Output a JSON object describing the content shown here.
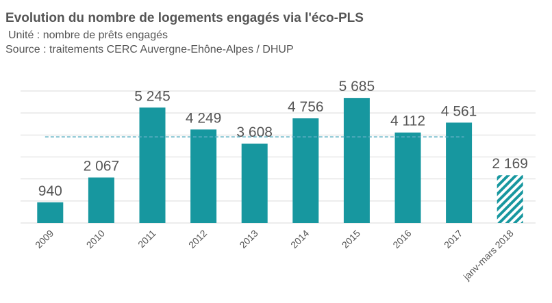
{
  "chart_data": {
    "type": "bar",
    "title": "Evolution du nombre de logements engagés via l'éco-PLS",
    "subtitle": "Unité : nombre de prêts engagés",
    "source": "Source : traitements CERC Auvergne-Ehône-Alpes / DHUP",
    "categories": [
      "2009",
      "2010",
      "2011",
      "2012",
      "2013",
      "2014",
      "2015",
      "2016",
      "2017",
      "janv-mars 2018"
    ],
    "values": [
      940,
      2067,
      5245,
      4249,
      3608,
      4756,
      5685,
      4112,
      4561,
      2169
    ],
    "value_labels": [
      "940",
      "2 067",
      "5 245",
      "4 249",
      "3 608",
      "4 756",
      "5 685",
      "4 112",
      "4 561",
      "2 169"
    ],
    "hatched": [
      false,
      false,
      false,
      false,
      false,
      false,
      false,
      false,
      false,
      true
    ],
    "color": "#17979f",
    "reference_line": {
      "value": 3914,
      "color": "#5fb0c4"
    },
    "ylim": [
      0,
      6000
    ],
    "yticks": [
      0,
      1000,
      2000,
      3000,
      4000,
      5000,
      6000
    ],
    "grid": true
  }
}
